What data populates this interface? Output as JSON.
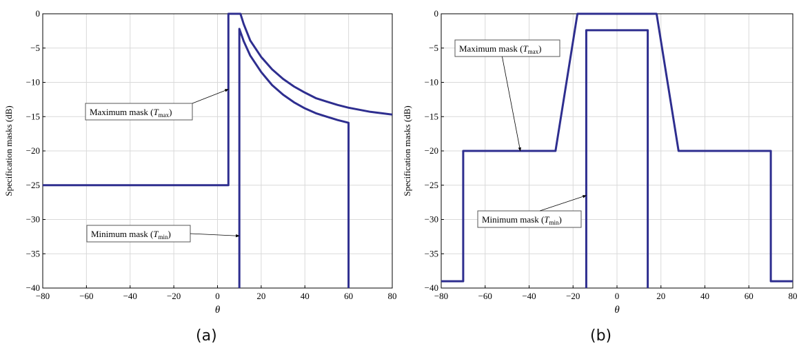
{
  "colors": {
    "series": "#2e2e8f",
    "grid": "#d9d9d9",
    "axis": "#000000"
  },
  "chart_data": [
    {
      "type": "line",
      "caption": "(a)",
      "xlabel": "θ",
      "ylabel": "Specification masks (dB)",
      "xlim": [
        -80,
        80
      ],
      "ylim": [
        -40,
        0
      ],
      "xticks": [
        -80,
        -60,
        -40,
        -20,
        0,
        20,
        40,
        60,
        80
      ],
      "yticks": [
        0,
        -5,
        -10,
        -15,
        -20,
        -25,
        -30,
        -35,
        -40
      ],
      "grid": true,
      "series": [
        {
          "points": [
            [
              -80,
              -25
            ],
            [
              5,
              -25
            ],
            [
              5,
              0
            ],
            [
              10.5,
              0
            ],
            [
              12,
              -1.5
            ],
            [
              15,
              -3.9
            ],
            [
              20,
              -6.3
            ],
            [
              25,
              -8.1
            ],
            [
              30,
              -9.5
            ],
            [
              35,
              -10.6
            ],
            [
              40,
              -11.5
            ],
            [
              45,
              -12.3
            ],
            [
              50,
              -12.8
            ],
            [
              55,
              -13.3
            ],
            [
              60,
              -13.7
            ],
            [
              65,
              -14.0
            ],
            [
              70,
              -14.3
            ],
            [
              75,
              -14.5
            ],
            [
              80,
              -14.7
            ]
          ]
        },
        {
          "points": [
            [
              10,
              -40
            ],
            [
              10,
              -2.2
            ],
            [
              12,
              -4.0
            ],
            [
              15,
              -6.1
            ],
            [
              20,
              -8.5
            ],
            [
              25,
              -10.4
            ],
            [
              30,
              -11.8
            ],
            [
              35,
              -12.9
            ],
            [
              40,
              -13.8
            ],
            [
              45,
              -14.5
            ],
            [
              50,
              -15.0
            ],
            [
              55,
              -15.5
            ],
            [
              60,
              -15.9
            ],
            [
              60,
              -40
            ]
          ]
        }
      ],
      "annotations": [
        {
          "text": "Maximum mask (T",
          "sub": "max",
          "close": ")",
          "target": [
            5,
            -11
          ]
        },
        {
          "text": "Minimum mask (T",
          "sub": "min",
          "close": ")",
          "target": [
            10,
            -32.4
          ]
        }
      ]
    },
    {
      "type": "line",
      "caption": "(b)",
      "xlabel": "θ",
      "ylabel": "Specification masks (dB)",
      "xlim": [
        -80,
        80
      ],
      "ylim": [
        -40,
        0
      ],
      "xticks": [
        -80,
        -60,
        -40,
        -20,
        0,
        20,
        40,
        60,
        80
      ],
      "yticks": [
        0,
        -5,
        -10,
        -15,
        -20,
        -25,
        -30,
        -35,
        -40
      ],
      "grid": true,
      "series": [
        {
          "points": [
            [
              -80,
              -39
            ],
            [
              -70,
              -39
            ],
            [
              -70,
              -20
            ],
            [
              -28,
              -20
            ],
            [
              -18,
              0
            ],
            [
              18,
              0
            ],
            [
              28,
              -20
            ],
            [
              70,
              -20
            ],
            [
              70,
              -39
            ],
            [
              80,
              -39
            ]
          ]
        },
        {
          "points": [
            [
              -14,
              -40
            ],
            [
              -14,
              -2.4
            ],
            [
              14,
              -2.4
            ],
            [
              14,
              -40
            ]
          ]
        }
      ],
      "annotations": [
        {
          "text": "Maximum mask (T",
          "sub": "max",
          "close": ")",
          "target": [
            -44,
            -20
          ]
        },
        {
          "text": "Minimum mask (T",
          "sub": "min",
          "close": ")",
          "target": [
            -14,
            -26.5
          ]
        }
      ]
    }
  ]
}
